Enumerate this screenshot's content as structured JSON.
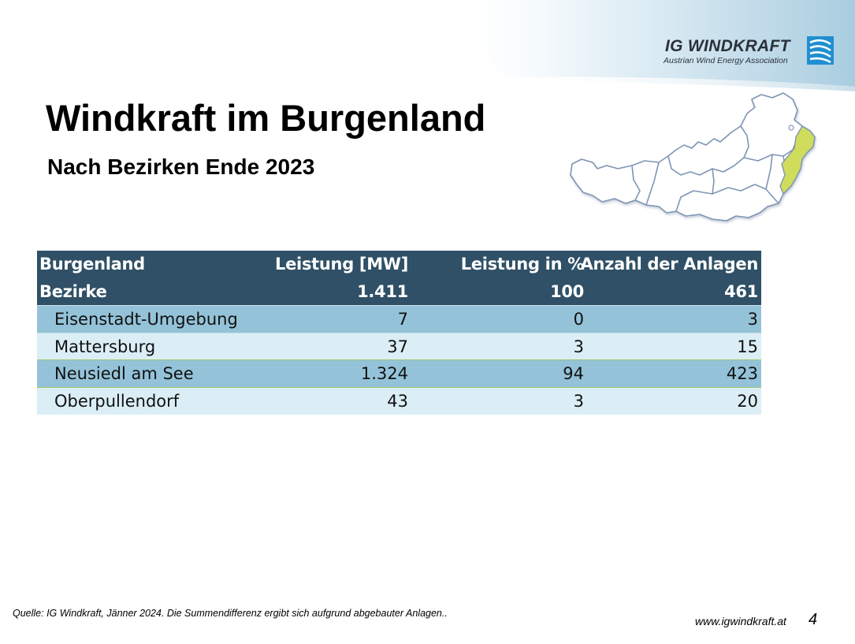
{
  "logo": {
    "name": "IG WINDKRAFT",
    "tagline": "Austrian Wind Energy Association"
  },
  "title": "Windkraft im Burgenland",
  "subtitle": "Nach Bezirken Ende 2023",
  "map": {
    "icon": "austria-map-icon",
    "highlight_region": "Burgenland",
    "highlight_color": "#cfdc5c",
    "outline_color": "#7f95b5"
  },
  "table": {
    "header": {
      "col1_line1": "Burgenland",
      "col1_line2": "Bezirke",
      "col2_label": "Leistung [MW]",
      "col3_label": "Leistung in %",
      "col4_label": "Anzahl der Anlagen",
      "total_mw": "1.411",
      "total_pct": "100",
      "total_count": "461"
    },
    "rows": [
      {
        "name": "Eisenstadt-Umgebung",
        "mw": "7",
        "pct": "0",
        "count": "3"
      },
      {
        "name": "Mattersburg",
        "mw": "37",
        "pct": "3",
        "count": "15"
      },
      {
        "name": "Neusiedl am See",
        "mw": "1.324",
        "pct": "94",
        "count": "423"
      },
      {
        "name": "Oberpullendorf",
        "mw": "43",
        "pct": "3",
        "count": "20"
      }
    ]
  },
  "footer": {
    "source": "Quelle: IG Windkraft, Jänner 2024. Die Summendifferenz ergibt sich aufgrund abgebauter Anlagen..",
    "url": "www.igwindkraft.at",
    "page": "4"
  },
  "colors": {
    "header_bg": "#2f5066",
    "row_dark": "#94c3d9",
    "row_light": "#dbeef6",
    "logo_blue": "#1f8fd0"
  }
}
